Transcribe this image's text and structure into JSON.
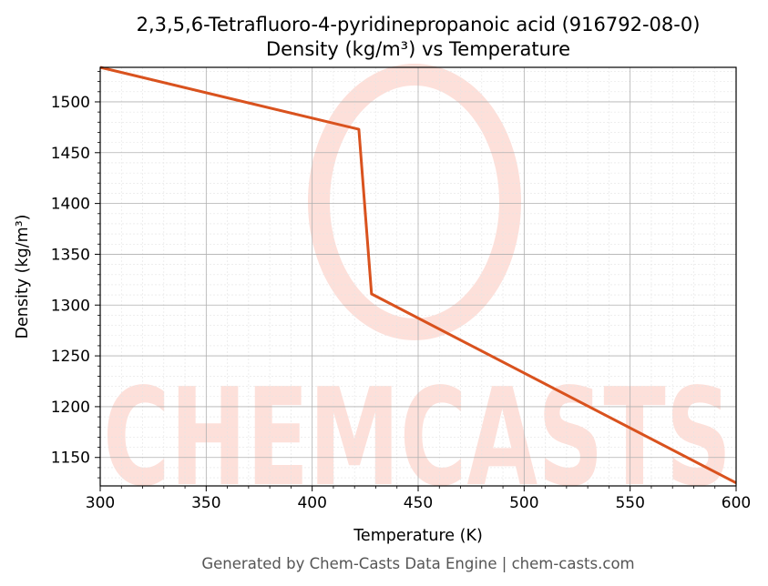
{
  "chart_data": {
    "type": "line",
    "title": "2,3,5,6-Tetrafluoro-4-pyridinepropanoic acid (916792-08-0)",
    "subtitle": "Density (kg/m³) vs Temperature",
    "xlabel": "Temperature (K)",
    "ylabel": "Density (kg/m³)",
    "xlim": [
      300,
      600
    ],
    "ylim": [
      1122,
      1534
    ],
    "xticks": [
      300,
      350,
      400,
      450,
      500,
      550,
      600
    ],
    "yticks": [
      1150,
      1200,
      1250,
      1300,
      1350,
      1400,
      1450,
      1500
    ],
    "grid": true,
    "legend": "none",
    "series": [
      {
        "color": "#d9521e",
        "x": [
          300,
          422,
          428,
          600
        ],
        "y": [
          1534,
          1473,
          1311,
          1125
        ]
      }
    ]
  },
  "footer": "Generated by Chem-Casts Data Engine | chem-casts.com",
  "watermark": {
    "text": "CHEMCASTS",
    "color": "#fde0da"
  }
}
